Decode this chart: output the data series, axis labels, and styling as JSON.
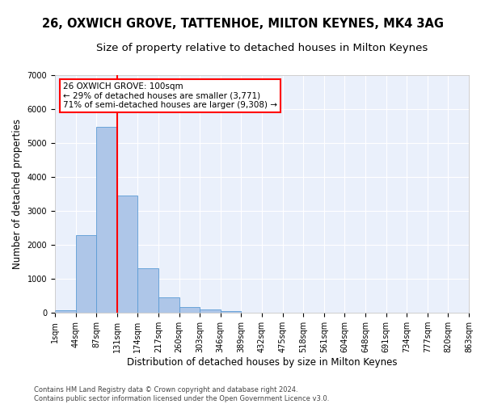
{
  "title_line1": "26, OXWICH GROVE, TATTENHOE, MILTON KEYNES, MK4 3AG",
  "title_line2": "Size of property relative to detached houses in Milton Keynes",
  "xlabel": "Distribution of detached houses by size in Milton Keynes",
  "ylabel": "Number of detached properties",
  "footnote": "Contains HM Land Registry data © Crown copyright and database right 2024.\nContains public sector information licensed under the Open Government Licence v3.0.",
  "bin_labels": [
    "1sqm",
    "44sqm",
    "87sqm",
    "131sqm",
    "174sqm",
    "217sqm",
    "260sqm",
    "303sqm",
    "346sqm",
    "389sqm",
    "432sqm",
    "475sqm",
    "518sqm",
    "561sqm",
    "604sqm",
    "648sqm",
    "691sqm",
    "734sqm",
    "777sqm",
    "820sqm",
    "863sqm"
  ],
  "bar_heights": [
    80,
    2280,
    5480,
    3450,
    1310,
    460,
    160,
    90,
    55,
    0,
    0,
    0,
    0,
    0,
    0,
    0,
    0,
    0,
    0,
    0
  ],
  "bar_color": "#aec6e8",
  "bar_edgecolor": "#5b9bd5",
  "vline_bin_index": 2,
  "annotation_text": "26 OXWICH GROVE: 100sqm\n← 29% of detached houses are smaller (3,771)\n71% of semi-detached houses are larger (9,308) →",
  "annotation_box_color": "white",
  "annotation_box_edgecolor": "red",
  "vline_color": "red",
  "ylim": [
    0,
    7000
  ],
  "yticks": [
    0,
    1000,
    2000,
    3000,
    4000,
    5000,
    6000,
    7000
  ],
  "bg_color": "#eaf0fb",
  "grid_color": "white",
  "title1_fontsize": 10.5,
  "title2_fontsize": 9.5,
  "axis_label_fontsize": 8.5,
  "tick_fontsize": 7,
  "annotation_fontsize": 7.5,
  "footnote_fontsize": 6
}
